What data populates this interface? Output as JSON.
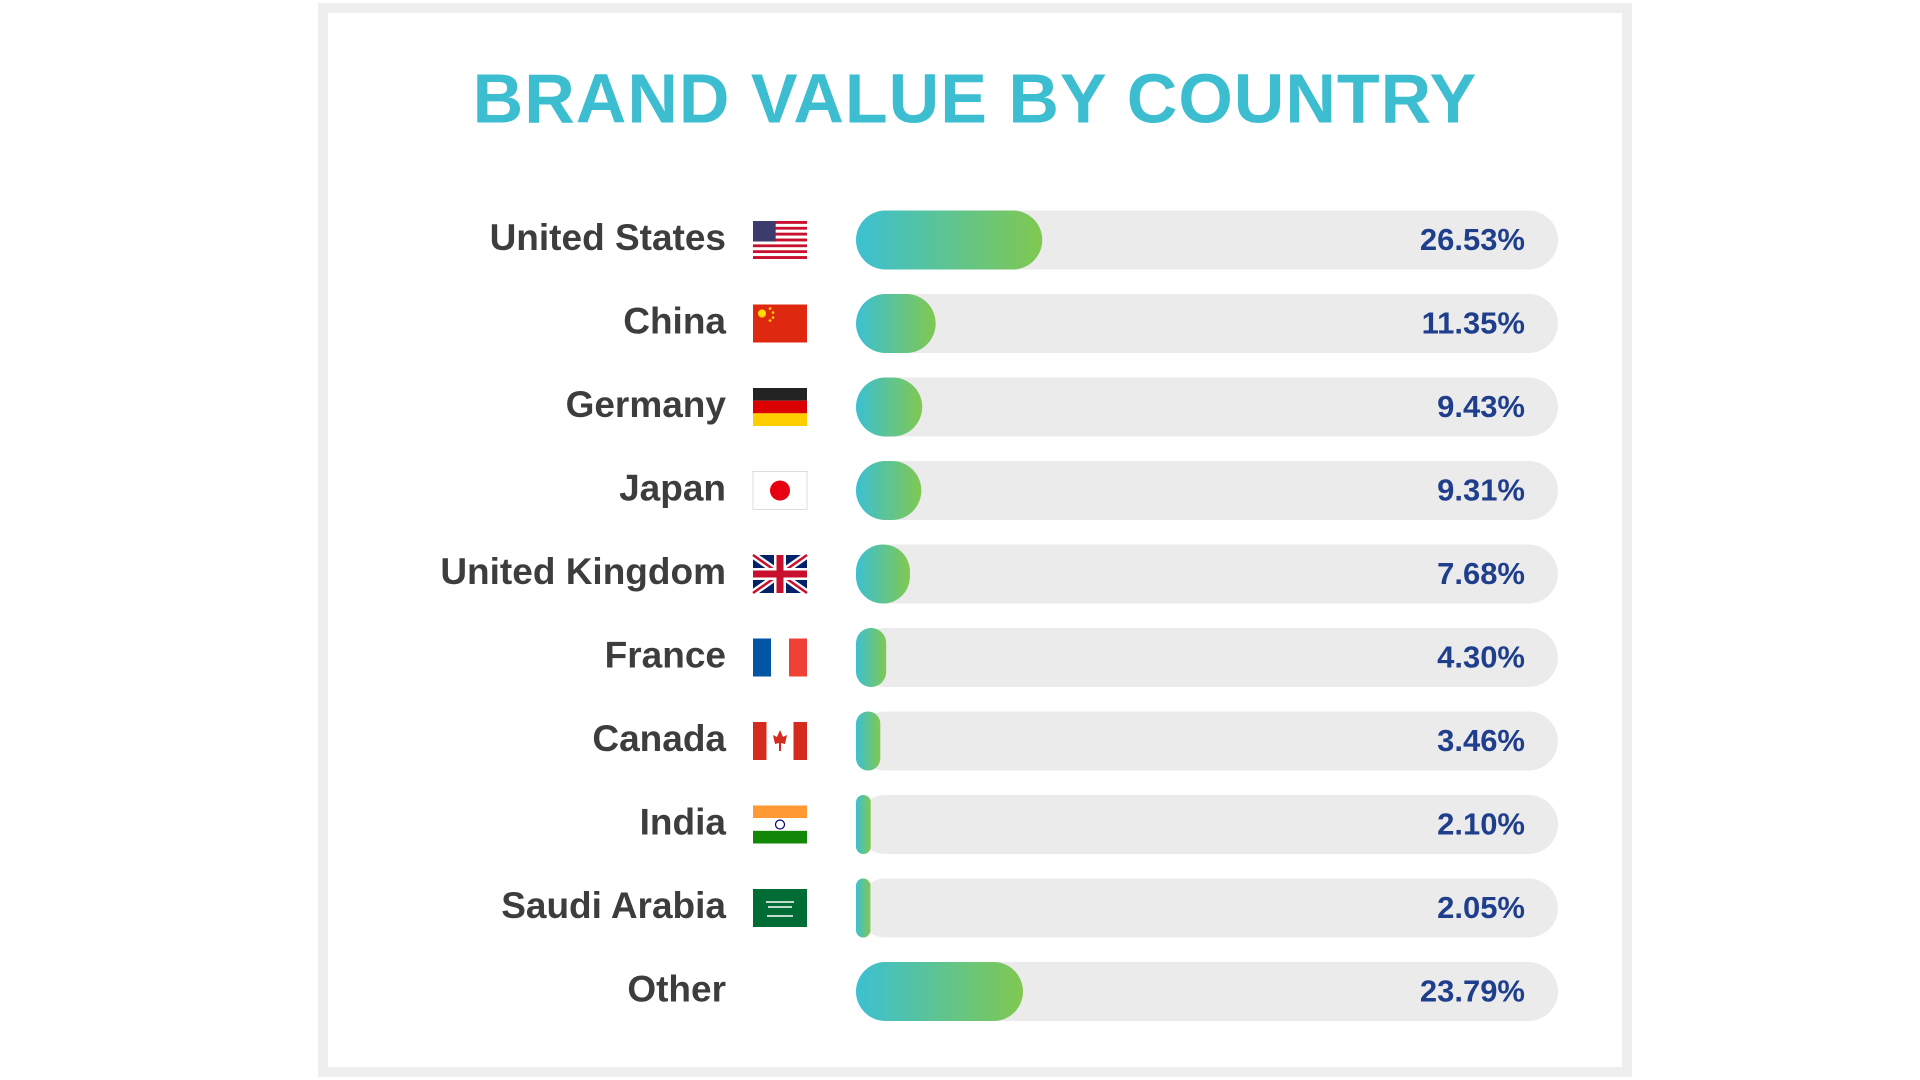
{
  "chart_data": {
    "type": "bar",
    "orientation": "horizontal",
    "title": "BRAND VALUE BY COUNTRY",
    "categories": [
      "United States",
      "China",
      "Germany",
      "Japan",
      "United Kingdom",
      "France",
      "Canada",
      "India",
      "Saudi Arabia",
      "Other"
    ],
    "values": [
      26.53,
      11.35,
      9.43,
      9.31,
      7.68,
      4.3,
      3.46,
      2.1,
      2.05,
      23.79
    ],
    "value_labels": [
      "26.53%",
      "11.35%",
      "9.43%",
      "9.31%",
      "7.68%",
      "4.30%",
      "3.46%",
      "2.10%",
      "2.05%",
      "23.79%"
    ],
    "xlim": [
      0,
      100
    ],
    "color": [
      "#3cc0d2",
      "#80c850"
    ]
  }
}
